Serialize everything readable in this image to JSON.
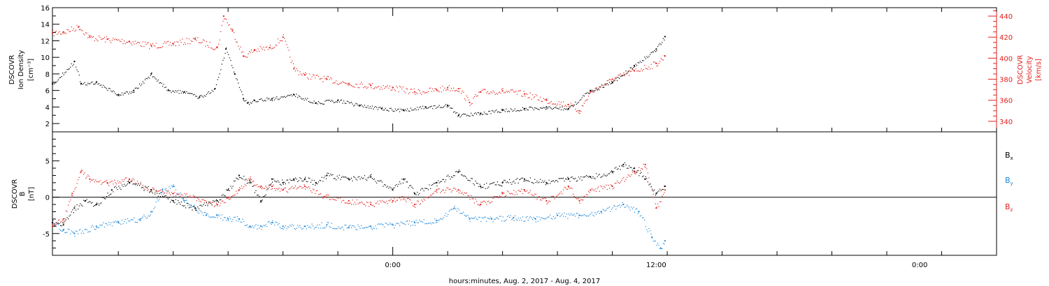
{
  "colors": {
    "axis": "#000000",
    "density": "#000000",
    "velocity": "#e0201c",
    "bx": "#000000",
    "by": "#1a86d8",
    "bz": "#e0201c"
  },
  "xaxis": {
    "label": "hours:minutes, Aug.  2, 2017 - Aug.  4, 2017",
    "range_hours": [
      -15.5,
      27.5
    ],
    "ticks": [
      {
        "hours": 0,
        "label": "0:00"
      },
      {
        "hours": 12,
        "label": "12:00"
      },
      {
        "hours": 24,
        "label": "0:00"
      }
    ]
  },
  "chart_data": [
    {
      "type": "scatter",
      "panel": "plasma",
      "ylabel": [
        "DSCOVR",
        "Ion Density",
        "[cm⁻³]"
      ],
      "ylim": [
        1,
        16
      ],
      "yticks": [
        "2",
        "4",
        "6",
        "8",
        "10",
        "12",
        "14",
        "16"
      ],
      "y2label": [
        "DSCOVR",
        "Velocity",
        "[km/s]"
      ],
      "y2lim": [
        330,
        448
      ],
      "y2ticks": [
        "340",
        "360",
        "380",
        "400",
        "420",
        "440"
      ],
      "series": [
        {
          "axis": "left",
          "x": [
            -15.5,
            -14.5,
            -14.2,
            -13.5,
            -12.5,
            -11.8,
            -11.0,
            -10.2,
            -9.5,
            -8.8,
            -8.1,
            -7.6,
            -7.2,
            -6.8,
            -6.6,
            -6.3,
            -5.5,
            -4.5,
            -3.5,
            -2.5,
            -1.5,
            -0.5,
            0.5,
            1.5,
            2.5,
            3.0,
            4.0,
            5.0,
            6.0,
            7.0,
            8.0,
            9.0,
            10.0,
            11.0,
            12.0,
            12.4
          ],
          "y": [
            6.8,
            9.5,
            6.8,
            7.0,
            5.5,
            6.0,
            8.0,
            6.0,
            5.8,
            5.2,
            6.2,
            11.0,
            8.0,
            5.0,
            4.5,
            4.8,
            5.0,
            5.5,
            4.5,
            4.8,
            4.2,
            3.8,
            3.6,
            4.0,
            4.2,
            3.0,
            3.2,
            3.6,
            3.8,
            4.0,
            3.8,
            6.0,
            7.0,
            9.0,
            11.0,
            12.5
          ]
        },
        {
          "axis": "right",
          "x": [
            -15.5,
            -15.0,
            -14.3,
            -13.8,
            -13.0,
            -12.0,
            -11.0,
            -10.0,
            -9.0,
            -8.0,
            -7.7,
            -7.3,
            -6.8,
            -6.3,
            -5.6,
            -5.0,
            -4.5,
            -4.0,
            -3.0,
            -2.0,
            -1.0,
            0.0,
            1.0,
            2.0,
            2.5,
            3.0,
            3.5,
            4.0,
            5.0,
            6.0,
            7.0,
            8.0,
            8.5,
            9.0,
            10.0,
            11.0,
            12.0,
            12.4
          ],
          "y": [
            424,
            425,
            430,
            420,
            418,
            416,
            412,
            414,
            418,
            410,
            440,
            426,
            402,
            408,
            410,
            420,
            390,
            384,
            380,
            376,
            374,
            372,
            368,
            370,
            372,
            371,
            358,
            368,
            369,
            366,
            360,
            356,
            350,
            368,
            380,
            388,
            395,
            402
          ]
        }
      ]
    },
    {
      "type": "scatter",
      "panel": "magnetic",
      "ylabel": [
        "DSCOVR",
        "B",
        "[nT]"
      ],
      "ylim": [
        -8,
        9
      ],
      "yticks": [
        "-5",
        "0",
        "5"
      ],
      "zero_line": true,
      "series": [
        {
          "name": "Bx",
          "x": [
            -15.5,
            -15.0,
            -14.5,
            -14.0,
            -13.5,
            -12.8,
            -12.0,
            -11.0,
            -10.0,
            -9.0,
            -8.0,
            -7.5,
            -7.0,
            -6.5,
            -6.0,
            -5.5,
            -5.0,
            -4.5,
            -4.0,
            -3.5,
            -3.0,
            -2.0,
            -1.0,
            0.0,
            0.5,
            1.0,
            2.0,
            3.0,
            4.0,
            5.0,
            6.0,
            7.0,
            8.0,
            9.0,
            10.0,
            10.5,
            11.0,
            11.5,
            12.0,
            12.4
          ],
          "y": [
            -3.5,
            -3.8,
            -1.5,
            -0.5,
            -1.0,
            1.0,
            2.0,
            1.0,
            -0.5,
            -1.5,
            -0.5,
            1.0,
            3.0,
            2.0,
            -0.5,
            2.5,
            2.0,
            2.5,
            2.5,
            2.0,
            3.0,
            2.5,
            2.8,
            1.0,
            2.5,
            0.5,
            2.0,
            3.5,
            1.5,
            2.0,
            2.5,
            2.0,
            2.5,
            2.8,
            3.5,
            4.5,
            4.0,
            2.5,
            0.5,
            1.5
          ]
        },
        {
          "name": "By",
          "x": [
            -15.5,
            -15.0,
            -14.5,
            -13.5,
            -12.5,
            -11.5,
            -11.0,
            -10.5,
            -10.0,
            -9.5,
            -9.0,
            -8.5,
            -8.0,
            -7.5,
            -7.0,
            -6.5,
            -6.0,
            -5.5,
            -5.0,
            -4.0,
            -3.0,
            -2.0,
            -1.0,
            0.0,
            1.0,
            2.0,
            2.8,
            3.5,
            4.5,
            5.5,
            6.5,
            7.5,
            8.5,
            9.5,
            10.5,
            11.2,
            11.8,
            12.2,
            12.4
          ],
          "y": [
            -3.5,
            -4.5,
            -5.0,
            -4.0,
            -3.5,
            -3.0,
            -2.0,
            1.0,
            1.5,
            -0.5,
            -1.5,
            -2.5,
            -2.5,
            -3.0,
            -3.0,
            -4.0,
            -4.0,
            -3.5,
            -4.0,
            -4.0,
            -3.8,
            -4.2,
            -4.0,
            -3.8,
            -3.5,
            -3.2,
            -1.5,
            -3.0,
            -3.0,
            -2.8,
            -3.0,
            -2.5,
            -2.5,
            -2.0,
            -1.0,
            -2.0,
            -5.5,
            -7.0,
            -6.0
          ]
        },
        {
          "name": "Bz",
          "x": [
            -15.5,
            -15.0,
            -14.6,
            -14.2,
            -13.8,
            -13.0,
            -12.0,
            -11.0,
            -10.0,
            -9.0,
            -8.0,
            -7.5,
            -7.0,
            -6.5,
            -6.0,
            -5.5,
            -5.0,
            -4.0,
            -3.0,
            -2.0,
            -1.0,
            0.0,
            0.5,
            1.0,
            2.0,
            3.0,
            4.0,
            5.0,
            6.0,
            7.0,
            8.0,
            8.5,
            9.0,
            10.0,
            11.0,
            11.5,
            12.0,
            12.4
          ],
          "y": [
            -4.0,
            -3.0,
            0.5,
            3.5,
            2.5,
            2.0,
            2.5,
            1.0,
            0.5,
            0.0,
            -1.0,
            0.0,
            1.0,
            2.5,
            1.5,
            1.5,
            1.0,
            1.5,
            0.0,
            -0.5,
            -1.0,
            -0.5,
            0.0,
            -1.0,
            1.0,
            1.0,
            -1.0,
            0.5,
            1.0,
            -0.5,
            1.5,
            -0.5,
            1.0,
            1.5,
            3.5,
            4.5,
            -1.5,
            1.0
          ]
        }
      ]
    }
  ]
}
